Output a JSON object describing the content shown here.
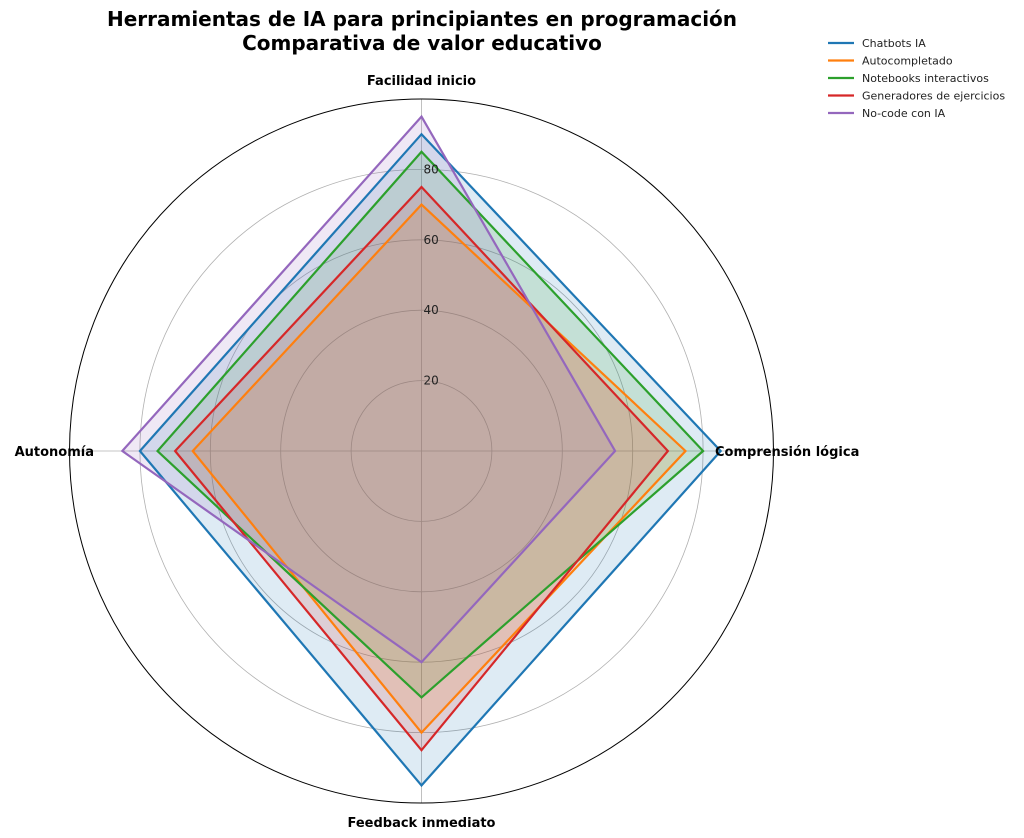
{
  "chart_data": {
    "type": "radar",
    "title": "Herramientas de IA para principiantes en programación",
    "subtitle": "Comparativa de valor educativo",
    "categories": [
      "Facilidad inicio",
      "Comprensión lógica",
      "Feedback inmediato",
      "Autonomía"
    ],
    "radial_ticks": [
      20,
      40,
      60,
      80
    ],
    "rlim": [
      0,
      100
    ],
    "grid": true,
    "legend_position": "upper right",
    "series": [
      {
        "name": "Chatbots IA",
        "color": "#1f77b4",
        "values": [
          90,
          85,
          95,
          80
        ]
      },
      {
        "name": "Autocompletado",
        "color": "#ff7f0e",
        "values": [
          70,
          75,
          80,
          65
        ]
      },
      {
        "name": "Notebooks interactivos",
        "color": "#2ca02c",
        "values": [
          85,
          80,
          70,
          75
        ]
      },
      {
        "name": "Generadores de ejercicios",
        "color": "#d62728",
        "values": [
          75,
          70,
          85,
          70
        ]
      },
      {
        "name": "No-code con IA",
        "color": "#9467bd",
        "values": [
          95,
          55,
          60,
          85
        ]
      }
    ]
  }
}
